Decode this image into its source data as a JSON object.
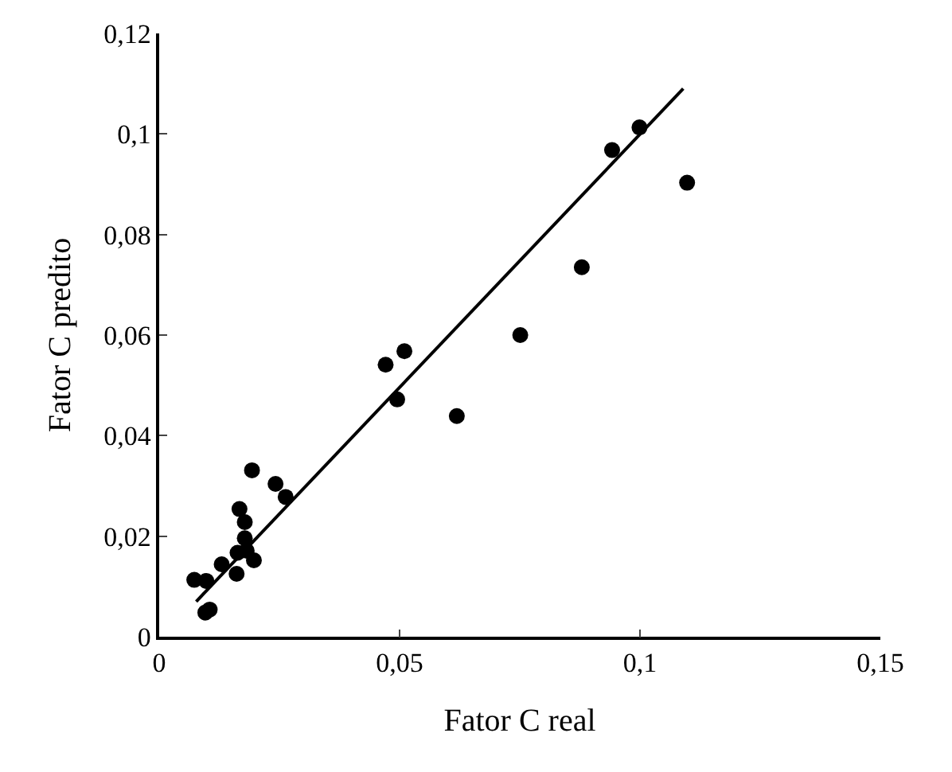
{
  "chart_data": {
    "type": "scatter",
    "xlabel": "Fator C real",
    "ylabel": "Fator C predito",
    "xlim": [
      0,
      0.15
    ],
    "ylim": [
      0,
      0.12
    ],
    "xticks": [
      0,
      {
        "value": 0.05,
        "label": "0,05"
      },
      {
        "value": 0.1,
        "label": "0,1"
      },
      {
        "value": 0.15,
        "label": "0,15"
      }
    ],
    "yticks": [
      0,
      {
        "value": 0.02,
        "label": "0,02"
      },
      {
        "value": 0.04,
        "label": "0,04"
      },
      {
        "value": 0.06,
        "label": "0,06"
      },
      {
        "value": 0.08,
        "label": "0,08"
      },
      {
        "value": 0.1,
        "label": "0,1"
      },
      {
        "value": 0.12,
        "label": "0,12"
      }
    ],
    "grid": false,
    "marker": "circle",
    "series": [
      {
        "color": "#000000",
        "x": [
          0.0073,
          0.0098,
          0.0105,
          0.0096,
          0.013,
          0.0161,
          0.0167,
          0.0178,
          0.0178,
          0.0163,
          0.0197,
          0.0182,
          0.0193,
          0.0242,
          0.0263,
          0.0471,
          0.051,
          0.0495,
          0.0619,
          0.0942,
          0.0999,
          0.1098,
          0.0879,
          0.0751
        ],
        "values": [
          0.0113,
          0.0111,
          0.0054,
          0.0048,
          0.0144,
          0.0125,
          0.0254,
          0.0228,
          0.0196,
          0.0167,
          0.0152,
          0.0171,
          0.0331,
          0.0304,
          0.0278,
          0.0541,
          0.0568,
          0.0472,
          0.0439,
          0.0968,
          0.1013,
          0.0903,
          0.0735,
          0.06
        ]
      },
      {
        "type": "line",
        "color": "#000000",
        "line_style": "solid",
        "marker": "none",
        "x": [
          0.0077,
          0.109
        ],
        "values": [
          0.007,
          0.109
        ]
      }
    ]
  }
}
